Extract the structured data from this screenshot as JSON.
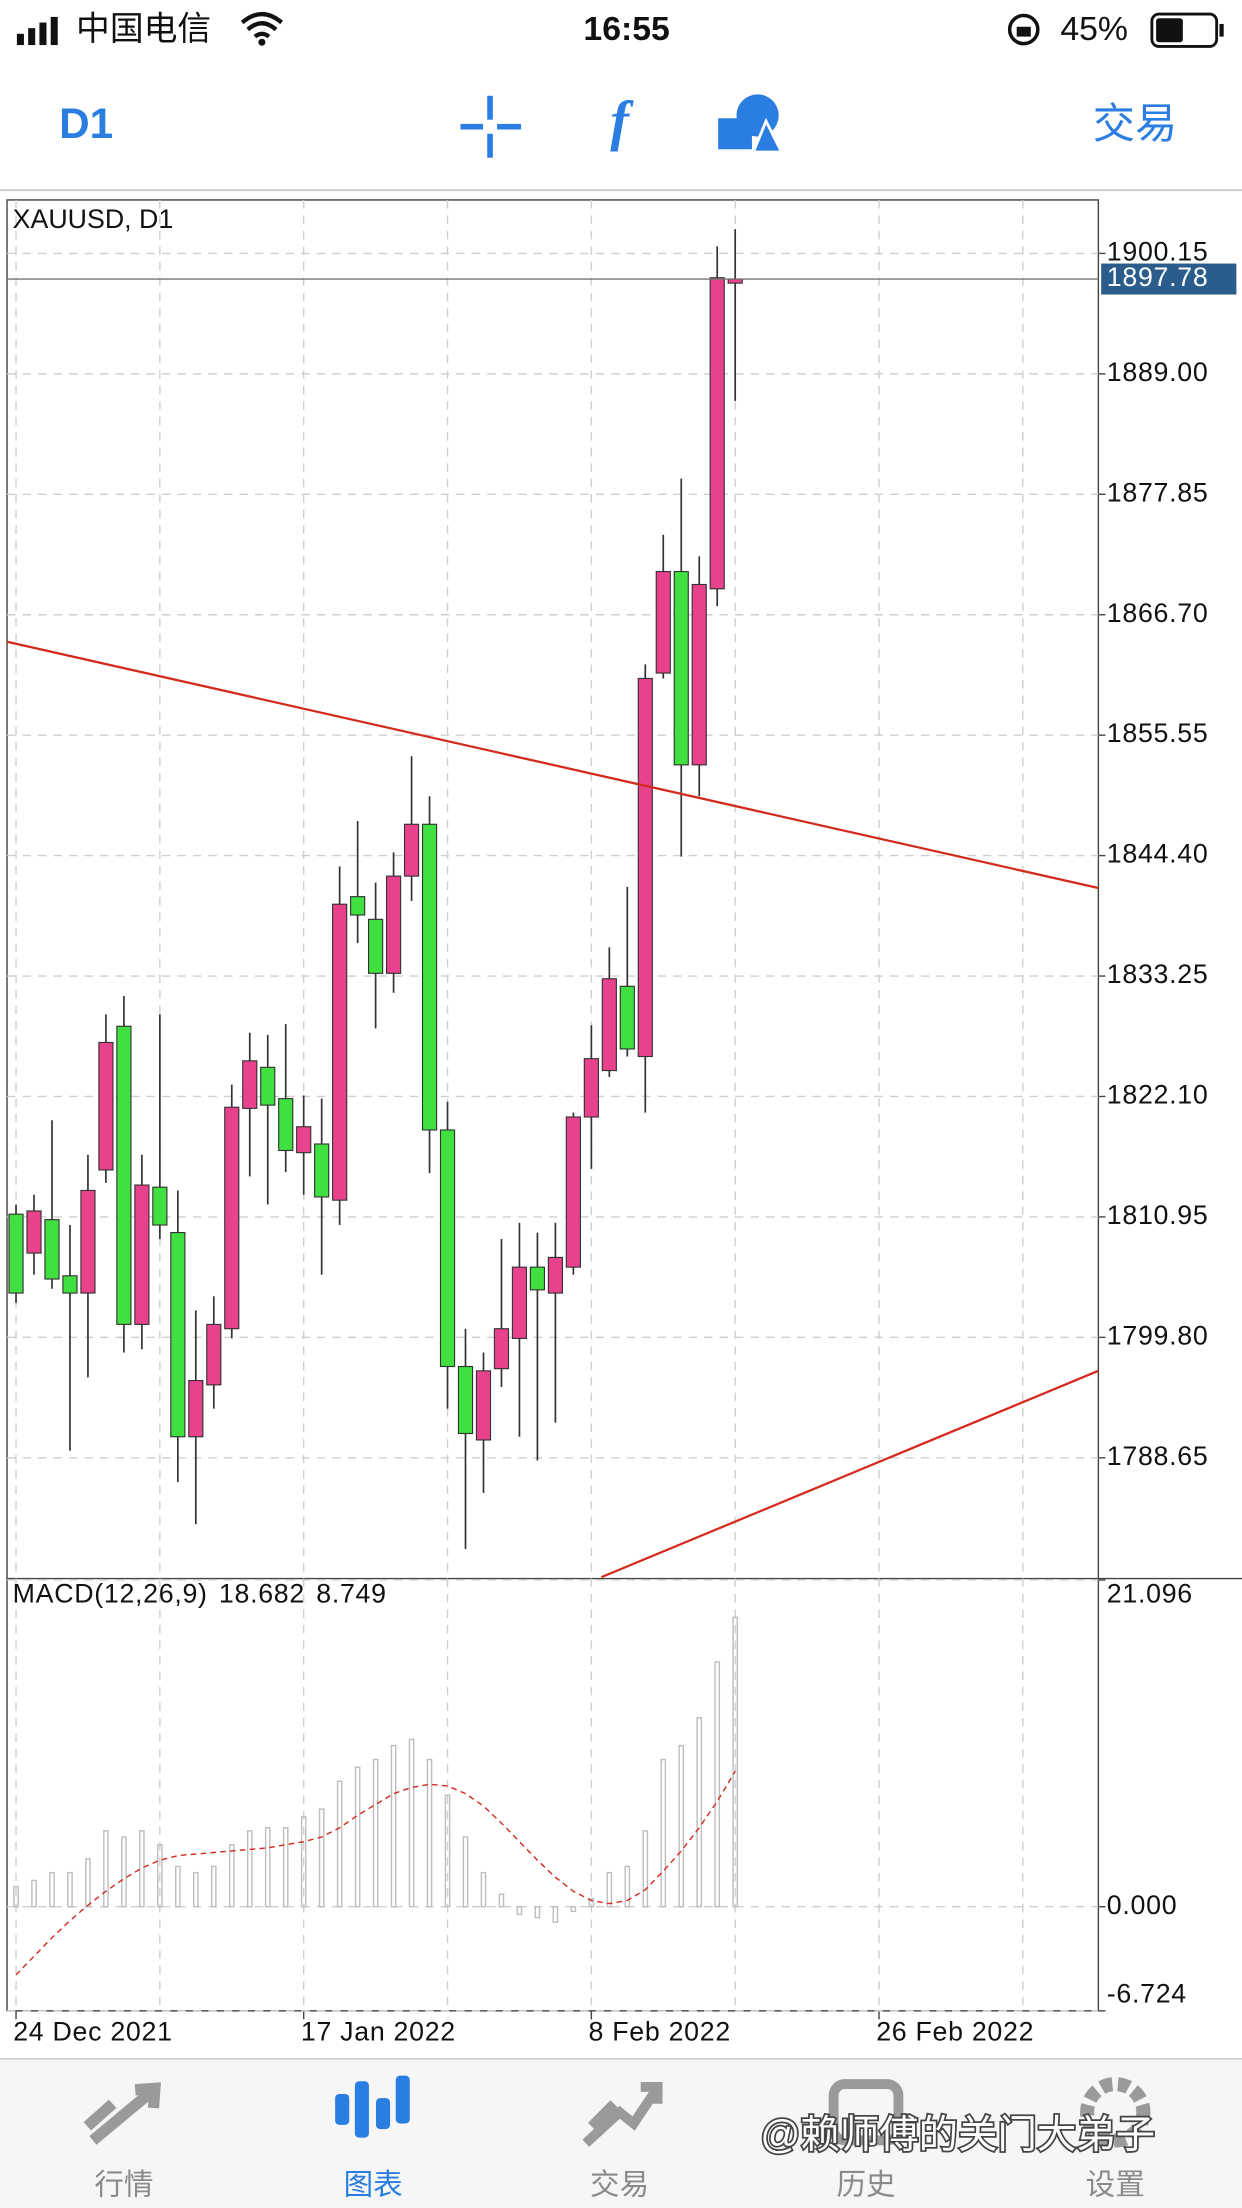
{
  "status_bar": {
    "carrier": "中国电信",
    "time": "16:55",
    "battery": "45%"
  },
  "toolbar": {
    "timeframe": "D1",
    "trade": "交易"
  },
  "chart_data": [
    {
      "type": "candlestick",
      "title": "XAUUSD, D1",
      "open": [
        1811.2,
        1807.6,
        1810.7,
        1805.5,
        1803.9,
        1815.3,
        1828.6,
        1801.0,
        1813.7,
        1809.5,
        1790.6,
        1795.4,
        1800.6,
        1821.0,
        1824.8,
        1821.9,
        1816.9,
        1817.7,
        1812.5,
        1840.6,
        1838.5,
        1833.5,
        1842.5,
        1847.3,
        1819.0,
        1797.1,
        1790.3,
        1796.9,
        1799.7,
        1806.3,
        1803.9,
        1806.3,
        1820.2,
        1824.5,
        1832.3,
        1825.8,
        1861.3,
        1870.7,
        1852.8,
        1869.1,
        1897.4
      ],
      "high": [
        1812.1,
        1813.0,
        1819.9,
        1810.2,
        1816.7,
        1829.7,
        1831.4,
        1816.7,
        1829.7,
        1813.4,
        1802.3,
        1803.6,
        1823.2,
        1828.0,
        1827.8,
        1828.8,
        1822.2,
        1821.9,
        1843.4,
        1847.6,
        1841.9,
        1844.7,
        1853.6,
        1849.9,
        1821.6,
        1800.6,
        1798.4,
        1808.9,
        1810.4,
        1809.5,
        1810.4,
        1820.6,
        1828.7,
        1835.9,
        1841.5,
        1862.1,
        1874.1,
        1879.3,
        1872.1,
        1900.8,
        1902.4
      ],
      "low": [
        1803.0,
        1805.6,
        1804.3,
        1789.3,
        1796.1,
        1814.1,
        1798.4,
        1798.7,
        1808.9,
        1786.4,
        1782.5,
        1793.2,
        1799.7,
        1814.7,
        1812.1,
        1815.1,
        1813.0,
        1805.6,
        1810.2,
        1836.3,
        1828.4,
        1831.7,
        1840.2,
        1815.0,
        1793.2,
        1780.2,
        1785.4,
        1795.2,
        1790.6,
        1788.4,
        1791.9,
        1805.6,
        1815.4,
        1823.9,
        1825.8,
        1820.6,
        1860.8,
        1844.3,
        1849.9,
        1867.5,
        1886.5
      ],
      "close": [
        1803.9,
        1811.5,
        1805.2,
        1803.9,
        1813.4,
        1827.1,
        1801.0,
        1813.9,
        1810.2,
        1790.6,
        1795.8,
        1801.0,
        1821.1,
        1825.4,
        1821.3,
        1817.1,
        1819.3,
        1812.8,
        1839.9,
        1838.9,
        1833.5,
        1842.5,
        1847.3,
        1819.0,
        1797.1,
        1790.9,
        1796.7,
        1800.6,
        1806.3,
        1804.2,
        1807.2,
        1820.2,
        1825.6,
        1833.0,
        1826.5,
        1860.8,
        1870.7,
        1852.8,
        1869.5,
        1897.9,
        1897.78
      ],
      "up_color": "#e8428d",
      "down_color": "#40e040",
      "last_price": 1897.78,
      "last_price_color": "#2b5d8c",
      "trend_lines": [
        {
          "x": [
            -0.5,
            60.2
          ],
          "y": [
            1864.2,
            1841.4
          ],
          "color": "#d42a1e"
        },
        {
          "x": [
            32.56,
            60.2
          ],
          "y": [
            1777.6,
            1796.7
          ],
          "color": "#d42a1e"
        }
      ],
      "xlim": [
        -0.5,
        60.2
      ],
      "ylim": [
        1777.6,
        1905.1
      ],
      "yticks": [
        1788.65,
        {
          "value": 1799.8,
          "label": "1799.80"
        },
        1810.95,
        {
          "value": 1822.1,
          "label": "1822.10"
        },
        1833.25,
        {
          "value": 1844.4,
          "label": "1844.40"
        },
        1855.55,
        {
          "value": 1866.7,
          "label": "1866.70"
        },
        1877.85,
        {
          "value": 1889,
          "label": "1889.00"
        },
        1900.15
      ],
      "xticks": [
        {
          "value": 0,
          "label": "24 Dec 2021"
        },
        {
          "value": 16,
          "label": "17 Jan 2022"
        },
        {
          "value": 32,
          "label": "8 Feb 2022"
        },
        {
          "value": 48,
          "label": "26 Feb 2022"
        }
      ],
      "xgrid": [
        0,
        8,
        16,
        24,
        32,
        40,
        48,
        56
      ],
      "grid": true
    },
    {
      "type": "macd",
      "title": "MACD(12,26,9)",
      "series": [
        {
          "color": "#bdbdbd",
          "values": [
            1.3,
            1.7,
            2.2,
            2.2,
            3.1,
            4.9,
            4.5,
            4.9,
            4.0,
            2.6,
            2.2,
            2.6,
            4.0,
            4.9,
            5.1,
            5.1,
            5.8,
            6.3,
            8.1,
            9.0,
            9.5,
            10.4,
            10.8,
            9.5,
            7.2,
            4.5,
            2.2,
            0.8,
            -0.5,
            -0.7,
            -1.0,
            -0.3,
            0.5,
            2.2,
            2.6,
            4.9,
            9.5,
            10.4,
            12.2,
            15.8,
            18.682
          ]
        },
        {
          "color": "#d42a1e",
          "values": [
            -4.4,
            -3.2,
            -2.0,
            -0.9,
            0.1,
            1.0,
            1.8,
            2.5,
            3.0,
            3.3,
            3.4,
            3.5,
            3.6,
            3.7,
            3.8,
            4.0,
            4.2,
            4.5,
            5.1,
            5.9,
            6.6,
            7.3,
            7.7,
            7.9,
            7.8,
            7.3,
            6.5,
            5.4,
            4.2,
            3.0,
            1.9,
            1.0,
            0.4,
            0.2,
            0.4,
            1.1,
            2.3,
            3.6,
            5.1,
            6.8,
            8.749
          ]
        }
      ],
      "ylim": [
        -6.724,
        21.096
      ],
      "yticks": [
        -6.724,
        {
          "value": 0,
          "label": "0.000"
        },
        21.096
      ],
      "grid": true
    }
  ],
  "tab_bar": {
    "tabs": [
      "行情",
      "图表",
      "交易",
      "历史",
      "设置"
    ],
    "active": 1
  },
  "watermark": "@赖师傅的关门大弟子"
}
